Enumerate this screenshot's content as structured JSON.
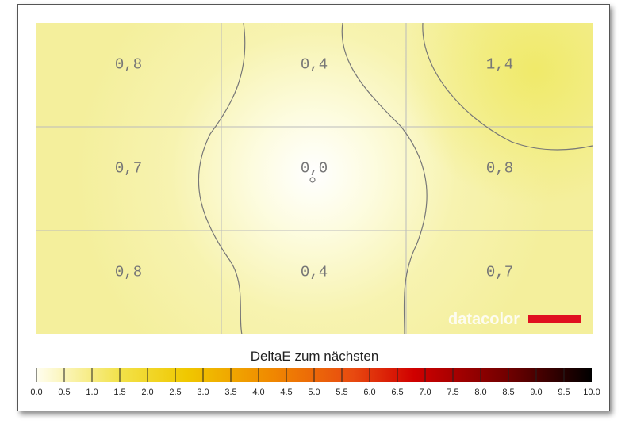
{
  "chart_data": {
    "type": "heatmap",
    "rows": 3,
    "cols": 3,
    "values": [
      [
        "0,8",
        "0,4",
        "1,4"
      ],
      [
        "0,7",
        "0,0",
        "0,8"
      ],
      [
        "0,8",
        "0,4",
        "0,7"
      ]
    ],
    "colorbar": {
      "title": "DeltaE zum nächsten",
      "ticks": [
        "0.0",
        "0.5",
        "1.0",
        "1.5",
        "2.0",
        "2.5",
        "3.0",
        "3.5",
        "4.0",
        "4.5",
        "5.0",
        "5.5",
        "6.0",
        "6.5",
        "7.0",
        "7.5",
        "8.0",
        "8.5",
        "9.0",
        "9.5",
        "10.0"
      ],
      "range": [
        0,
        10
      ],
      "colors": [
        "#fffef0",
        "#f2e24a",
        "#f0c800",
        "#f08a00",
        "#e84a10",
        "#d00000",
        "#700000",
        "#000000"
      ]
    },
    "grid": true,
    "contours": true
  },
  "logo": {
    "text": "datacolor",
    "bar_color": "#e01020"
  }
}
